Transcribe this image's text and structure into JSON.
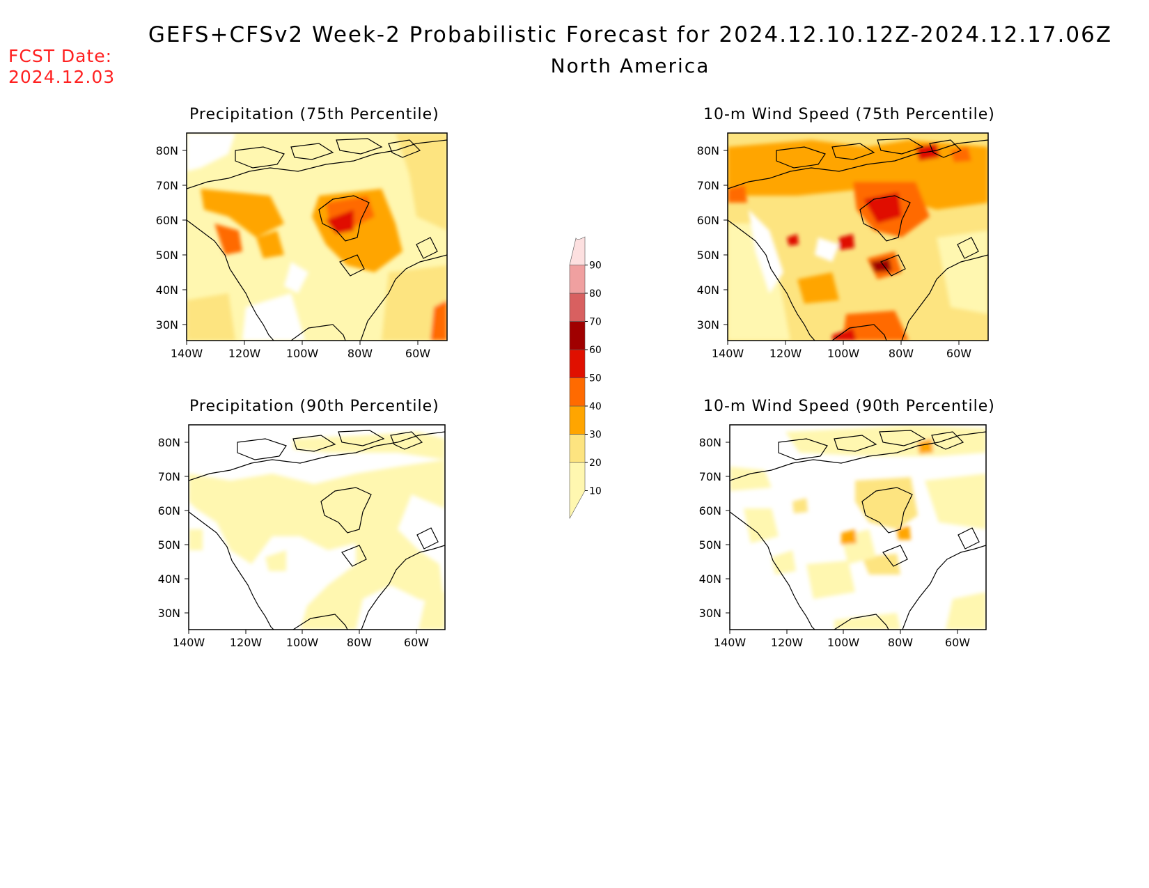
{
  "header": {
    "title": "GEFS+CFSv2 Week-2 Probabilistic Forecast for 2024.12.10.12Z-2024.12.17.06Z",
    "subtitle": "North America",
    "fcst_label": "FCST Date:",
    "fcst_date": "2024.12.03"
  },
  "panels": [
    {
      "id": "precip75",
      "title": "Precipitation (75th Percentile)"
    },
    {
      "id": "wind75",
      "title": "10-m Wind Speed (75th Percentile)"
    },
    {
      "id": "precip90",
      "title": "Precipitation (90th Percentile)"
    },
    {
      "id": "wind90",
      "title": "10-m Wind Speed (90th Percentile)"
    }
  ],
  "axes": {
    "lat_labels": [
      "80N",
      "70N",
      "60N",
      "50N",
      "40N",
      "30N"
    ],
    "lon_labels": [
      "140W",
      "120W",
      "100W",
      "80W",
      "60W"
    ]
  },
  "colorbar": {
    "labels": [
      "10",
      "20",
      "30",
      "40",
      "50",
      "60",
      "70",
      "80",
      "90"
    ],
    "colors": [
      "#fff7b0",
      "#fde480",
      "#ffa500",
      "#ff6a00",
      "#e01000",
      "#a00000",
      "#d86060",
      "#f0a0a0",
      "#fde0e0"
    ]
  }
}
